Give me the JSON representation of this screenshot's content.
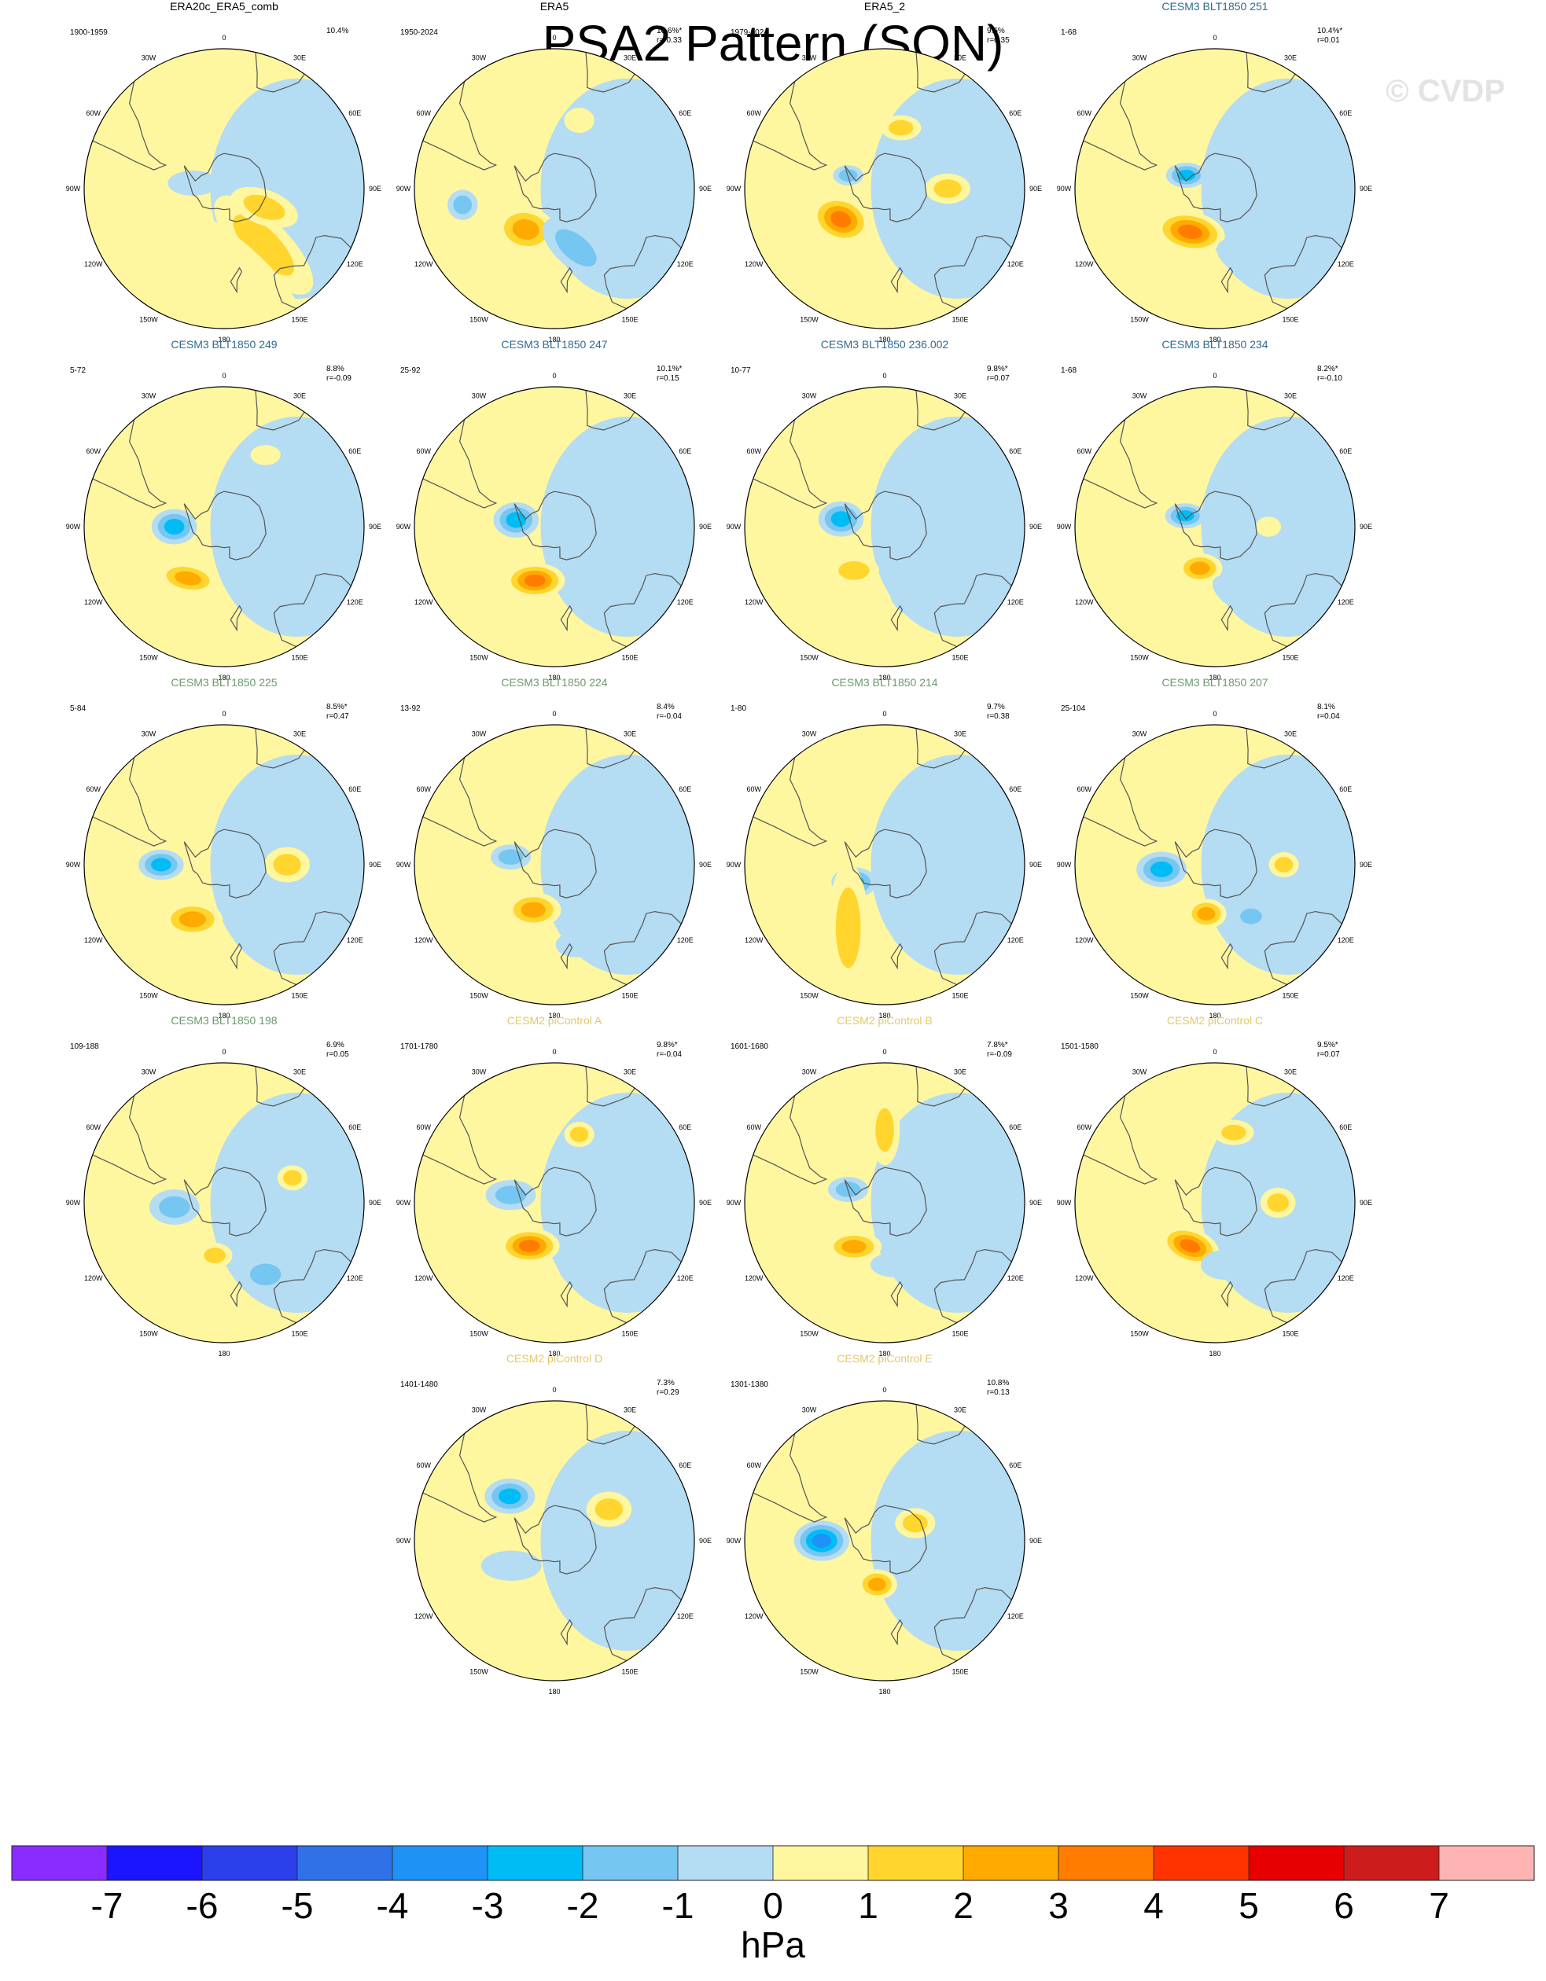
{
  "title": "PSA2 Pattern (SON)",
  "watermark": "© CVDP",
  "colors": {
    "neg7": "#8a2cff",
    "neg6": "#1a14ff",
    "neg5": "#2b3fea",
    "neg4": "#2f72e8",
    "neg3": "#1e92f5",
    "neg2": "#00bcf5",
    "neg1": "#75c6f0",
    "n0": "#b4dcf2",
    "p0": "#fff6a0",
    "p1": "#ffd52e",
    "p2": "#ffaa00",
    "p3": "#ff7c00",
    "p4": "#ff3300",
    "p5": "#e60000",
    "p6": "#cc1c1c",
    "p7": "#ffb4b4",
    "title_obs": "#000000",
    "title_cesm3": "#2f6b8e",
    "title_cesm3_green": "#6b9a6b",
    "title_cesm2": "#e3c86a"
  },
  "map_labels": [
    "0",
    "30E",
    "60E",
    "90E",
    "120E",
    "150E",
    "180",
    "150W",
    "120W",
    "90W",
    "60W",
    "30W"
  ],
  "panels": [
    {
      "title": "ERA20c_ERA5_comb",
      "title_color": "title_obs",
      "years": "1900-1959",
      "pct": "10.4%",
      "r": "",
      "features": [
        {
          "lon": 145,
          "lat": -52,
          "v": 2,
          "a": 26,
          "b": 10,
          "rot": 45
        },
        {
          "lon": 115,
          "lat": -65,
          "v": 2,
          "a": 14,
          "b": 7,
          "rot": 20
        },
        {
          "lon": -80,
          "lat": -72,
          "v": -1,
          "a": 10,
          "b": 5,
          "rot": 0
        },
        {
          "lon": 180,
          "lat": -45,
          "v": 1,
          "a": 40,
          "b": 14,
          "rot": 40
        }
      ]
    },
    {
      "title": "ERA5",
      "title_color": "title_obs",
      "years": "1950-2024",
      "pct": "10.6%*",
      "r": "r=-0.33",
      "features": [
        {
          "lon": -145,
          "lat": -62,
          "v": 3,
          "a": 12,
          "b": 9,
          "rot": 10
        },
        {
          "lon": 160,
          "lat": -55,
          "v": -2,
          "a": 16,
          "b": 8,
          "rot": 40
        },
        {
          "lon": -100,
          "lat": -40,
          "v": -2,
          "a": 6,
          "b": 6,
          "rot": 0
        },
        {
          "lon": 20,
          "lat": -50,
          "v": 1,
          "a": 6,
          "b": 5,
          "rot": 0
        },
        {
          "lon": 60,
          "lat": -45,
          "v": -1,
          "a": 6,
          "b": 5,
          "rot": 0
        }
      ]
    },
    {
      "title": "ERA5_2",
      "title_color": "title_obs",
      "years": "1979-2024",
      "pct": "9.6%",
      "r": "r=0.35",
      "features": [
        {
          "lon": -125,
          "lat": -60,
          "v": 4,
          "a": 12,
          "b": 9,
          "rot": 20
        },
        {
          "lon": 90,
          "lat": -55,
          "v": 2,
          "a": 9,
          "b": 6,
          "rot": 0
        },
        {
          "lon": 15,
          "lat": -55,
          "v": 2,
          "a": 8,
          "b": 5,
          "rot": 0
        },
        {
          "lon": -70,
          "lat": -68,
          "v": -2,
          "a": 6,
          "b": 4,
          "rot": 0
        }
      ]
    },
    {
      "title": "CESM3 BLT1850 251",
      "title_color": "title_cesm3",
      "years": "1-68",
      "pct": "10.4%*",
      "r": "r=0.01",
      "features": [
        {
          "lon": -150,
          "lat": -62,
          "v": 4,
          "a": 14,
          "b": 8,
          "rot": 10
        },
        {
          "lon": -65,
          "lat": -72,
          "v": -3,
          "a": 8,
          "b": 5,
          "rot": 0
        },
        {
          "lon": 160,
          "lat": -50,
          "v": -1,
          "a": 10,
          "b": 6,
          "rot": 30
        }
      ]
    },
    {
      "title": "CESM3 BLT1850 249",
      "title_color": "title_cesm3",
      "years": "5-72",
      "pct": "8.8%",
      "r": "r=-0.09",
      "features": [
        {
          "lon": -90,
          "lat": -62,
          "v": -3,
          "a": 9,
          "b": 7,
          "rot": 0
        },
        {
          "lon": -145,
          "lat": -55,
          "v": 3,
          "a": 12,
          "b": 6,
          "rot": 10
        },
        {
          "lon": 30,
          "lat": -45,
          "v": 1,
          "a": 6,
          "b": 4,
          "rot": 0
        }
      ]
    },
    {
      "title": "CESM3 BLT1850 247",
      "title_color": "title_cesm3",
      "years": "25-92",
      "pct": "10.1%*",
      "r": "r=0.15",
      "features": [
        {
          "lon": -80,
          "lat": -68,
          "v": -3,
          "a": 9,
          "b": 7,
          "rot": 0
        },
        {
          "lon": -160,
          "lat": -58,
          "v": 4,
          "a": 12,
          "b": 7,
          "rot": 0
        }
      ]
    },
    {
      "title": "CESM3 BLT1850 236.002",
      "title_color": "title_cesm3",
      "years": "10-77",
      "pct": "9.8%*",
      "r": "r=0.07",
      "features": [
        {
          "lon": -80,
          "lat": -65,
          "v": -3,
          "a": 9,
          "b": 7,
          "rot": 0
        },
        {
          "lon": -145,
          "lat": -60,
          "v": 2,
          "a": 10,
          "b": 6,
          "rot": 0
        },
        {
          "lon": 160,
          "lat": -45,
          "v": -1,
          "a": 10,
          "b": 5,
          "rot": 30
        }
      ]
    },
    {
      "title": "CESM3 BLT1850 234",
      "title_color": "title_cesm3",
      "years": "1-68",
      "pct": "8.2%*",
      "r": "r=-0.10",
      "features": [
        {
          "lon": -70,
          "lat": -72,
          "v": -3,
          "a": 8,
          "b": 5,
          "rot": 0
        },
        {
          "lon": -160,
          "lat": -65,
          "v": 3,
          "a": 9,
          "b": 6,
          "rot": 0
        },
        {
          "lon": 160,
          "lat": -50,
          "v": -1,
          "a": 12,
          "b": 6,
          "rot": 30
        },
        {
          "lon": 90,
          "lat": -60,
          "v": 1,
          "a": 5,
          "b": 4,
          "rot": 0
        }
      ]
    },
    {
      "title": "CESM3 BLT1850 225",
      "title_color": "title_cesm3_green",
      "years": "5-84",
      "pct": "8.5%*",
      "r": "r=0.47",
      "features": [
        {
          "lon": -90,
          "lat": -55,
          "v": -3,
          "a": 9,
          "b": 6,
          "rot": 0
        },
        {
          "lon": -150,
          "lat": -55,
          "v": 3,
          "a": 12,
          "b": 7,
          "rot": 0
        },
        {
          "lon": 90,
          "lat": -55,
          "v": 2,
          "a": 9,
          "b": 7,
          "rot": 0
        }
      ]
    },
    {
      "title": "CESM3 BLT1850 224",
      "title_color": "title_cesm3_green",
      "years": "13-92",
      "pct": "8.4%",
      "r": "r=-0.04",
      "features": [
        {
          "lon": -80,
          "lat": -65,
          "v": -2,
          "a": 8,
          "b": 5,
          "rot": 0
        },
        {
          "lon": -155,
          "lat": -62,
          "v": 3,
          "a": 11,
          "b": 7,
          "rot": 0
        },
        {
          "lon": 165,
          "lat": -45,
          "v": -1,
          "a": 8,
          "b": 5,
          "rot": 0
        }
      ]
    },
    {
      "title": "CESM3 BLT1850 214",
      "title_color": "title_cesm3_green",
      "years": "1-80",
      "pct": "9.7%",
      "r": "r=0.38",
      "features": [
        {
          "lon": -120,
          "lat": -70,
          "v": -3,
          "a": 9,
          "b": 6,
          "rot": 0
        },
        {
          "lon": -150,
          "lat": -50,
          "v": 2,
          "a": 26,
          "b": 8,
          "rot": 90
        },
        {
          "lon": 70,
          "lat": -60,
          "v": -1,
          "a": 6,
          "b": 4,
          "rot": 0
        }
      ]
    },
    {
      "title": "CESM3 BLT1850 207",
      "title_color": "title_cesm3_green",
      "years": "25-104",
      "pct": "8.1%",
      "r": "r=0.04",
      "features": [
        {
          "lon": -95,
          "lat": -60,
          "v": -3,
          "a": 10,
          "b": 7,
          "rot": 0
        },
        {
          "lon": -170,
          "lat": -62,
          "v": 3,
          "a": 8,
          "b": 6,
          "rot": 0
        },
        {
          "lon": 90,
          "lat": -52,
          "v": 2,
          "a": 6,
          "b": 5,
          "rot": 0
        },
        {
          "lon": 145,
          "lat": -55,
          "v": -2,
          "a": 7,
          "b": 5,
          "rot": 0
        }
      ]
    },
    {
      "title": "CESM3 BLT1850 198",
      "title_color": "title_cesm3_green",
      "years": "109-188",
      "pct": "6.9%",
      "r": "r=0.05",
      "features": [
        {
          "lon": -95,
          "lat": -62,
          "v": -2,
          "a": 10,
          "b": 7,
          "rot": 0
        },
        {
          "lon": -170,
          "lat": -60,
          "v": 2,
          "a": 7,
          "b": 5,
          "rot": 0
        },
        {
          "lon": 150,
          "lat": -45,
          "v": -2,
          "a": 10,
          "b": 7,
          "rot": 0
        },
        {
          "lon": 70,
          "lat": -50,
          "v": 2,
          "a": 6,
          "b": 5,
          "rot": 0
        }
      ]
    },
    {
      "title": "CESM2 piControl A",
      "title_color": "title_cesm2",
      "years": "1701-1780",
      "pct": "9.8%*",
      "r": "r=-0.04",
      "features": [
        {
          "lon": -80,
          "lat": -65,
          "v": -2,
          "a": 10,
          "b": 6,
          "rot": 0
        },
        {
          "lon": -150,
          "lat": -62,
          "v": 4,
          "a": 12,
          "b": 7,
          "rot": 0
        },
        {
          "lon": 155,
          "lat": -45,
          "v": -1,
          "a": 14,
          "b": 7,
          "rot": 30
        },
        {
          "lon": 20,
          "lat": -50,
          "v": 2,
          "a": 6,
          "b": 5,
          "rot": 0
        }
      ]
    },
    {
      "title": "CESM2 piControl B",
      "title_color": "title_cesm2",
      "years": "1601-1680",
      "pct": "7.8%*",
      "r": "r=-0.09",
      "features": [
        {
          "lon": -70,
          "lat": -68,
          "v": -2,
          "a": 8,
          "b": 5,
          "rot": 0
        },
        {
          "lon": -145,
          "lat": -60,
          "v": 3,
          "a": 11,
          "b": 6,
          "rot": 0
        },
        {
          "lon": 0,
          "lat": -50,
          "v": 2,
          "a": 14,
          "b": 6,
          "rot": 90
        },
        {
          "lon": 170,
          "lat": -55,
          "v": -1,
          "a": 10,
          "b": 5,
          "rot": 0
        }
      ]
    },
    {
      "title": "CESM2 piControl C",
      "title_color": "title_cesm2",
      "years": "1501-1580",
      "pct": "9.5%*",
      "r": "r=0.07",
      "features": [
        {
          "lon": -150,
          "lat": -62,
          "v": 4,
          "a": 12,
          "b": 7,
          "rot": 20
        },
        {
          "lon": 90,
          "lat": -55,
          "v": 2,
          "a": 7,
          "b": 6,
          "rot": 0
        },
        {
          "lon": 15,
          "lat": -50,
          "v": 2,
          "a": 8,
          "b": 5,
          "rot": 0
        },
        {
          "lon": 170,
          "lat": -55,
          "v": -1,
          "a": 10,
          "b": 6,
          "rot": 0
        }
      ]
    },
    {
      "title": "CESM2 piControl D",
      "title_color": "title_cesm2",
      "years": "1401-1480",
      "pct": "7.3%",
      "r": "r=0.29",
      "features": [
        {
          "lon": -45,
          "lat": -55,
          "v": -3,
          "a": 10,
          "b": 7,
          "rot": 0
        },
        {
          "lon": 60,
          "lat": -55,
          "v": 2,
          "a": 9,
          "b": 7,
          "rot": 0
        },
        {
          "lon": -120,
          "lat": -62,
          "v": -1,
          "a": 12,
          "b": 6,
          "rot": 0
        }
      ]
    },
    {
      "title": "CESM2 piControl E",
      "title_color": "title_cesm2",
      "years": "1301-1380",
      "pct": "10.8%",
      "r": "r=0.13",
      "features": [
        {
          "lon": -90,
          "lat": -55,
          "v": -4,
          "a": 11,
          "b": 8,
          "rot": 0
        },
        {
          "lon": -170,
          "lat": -65,
          "v": 3,
          "a": 8,
          "b": 6,
          "rot": 0
        },
        {
          "lon": 60,
          "lat": -70,
          "v": 2,
          "a": 8,
          "b": 6,
          "rot": 0
        },
        {
          "lon": 140,
          "lat": -50,
          "v": -1,
          "a": 10,
          "b": 6,
          "rot": 0
        }
      ]
    }
  ],
  "colorbar": {
    "levels": [
      "-7",
      "-6",
      "-5",
      "-4",
      "-3",
      "-2",
      "-1",
      "0",
      "1",
      "2",
      "3",
      "4",
      "5",
      "6",
      "7"
    ],
    "colors": [
      "neg7",
      "neg6",
      "neg5",
      "neg4",
      "neg3",
      "neg2",
      "neg1",
      "n0",
      "p0",
      "p1",
      "p2",
      "p3",
      "p4",
      "p5",
      "p6",
      "p7"
    ],
    "units": "hPa"
  }
}
